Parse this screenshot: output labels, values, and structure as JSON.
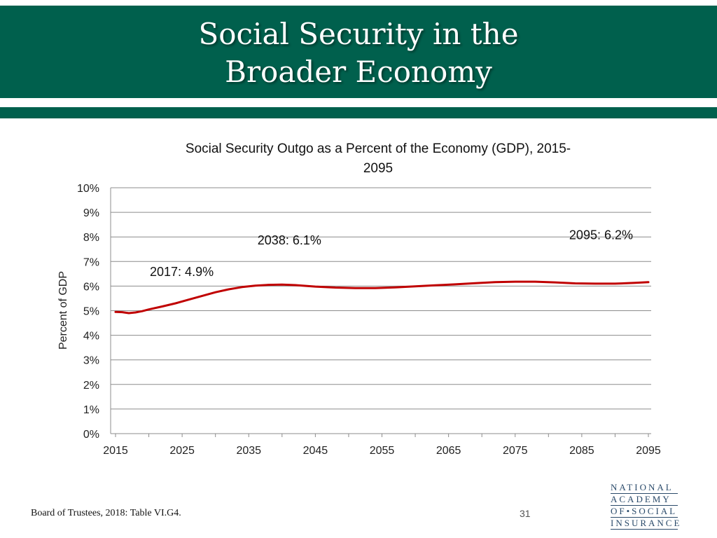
{
  "slide": {
    "title_line1": "Social Security in the",
    "title_line2": "Broader Economy",
    "source": "Board of Trustees, 2018: Table VI.G4.",
    "page_number": "31",
    "logo_lines": [
      "NATIONAL",
      "ACADEMY",
      "OF•SOCIAL",
      "INSURANCE"
    ]
  },
  "colors": {
    "header_green": "#00604d",
    "line_red": "#c00000",
    "grid": "#8c8c8c"
  },
  "chart_data": {
    "type": "line",
    "title_line1": "Social Security Outgo as a Percent of the Economy (GDP), 2015-",
    "title_line2": "2095",
    "xlabel": "",
    "ylabel": "Percent of GDP",
    "xlim": [
      2015,
      2095
    ],
    "ylim": [
      0,
      10
    ],
    "x_ticks": [
      2015,
      2025,
      2035,
      2045,
      2055,
      2065,
      2075,
      2085,
      2095
    ],
    "y_ticks": [
      "0%",
      "1%",
      "2%",
      "3%",
      "4%",
      "5%",
      "6%",
      "7%",
      "8%",
      "9%",
      "10%"
    ],
    "grid": true,
    "series": [
      {
        "name": "Social Security Outgo (% of GDP)",
        "x": [
          2015,
          2016,
          2017,
          2018,
          2019,
          2020,
          2022,
          2024,
          2026,
          2028,
          2030,
          2032,
          2034,
          2036,
          2038,
          2040,
          2042,
          2045,
          2048,
          2051,
          2054,
          2057,
          2060,
          2063,
          2066,
          2069,
          2072,
          2075,
          2078,
          2081,
          2084,
          2087,
          2090,
          2093,
          2095
        ],
        "values": [
          4.95,
          4.94,
          4.9,
          4.93,
          4.98,
          5.05,
          5.17,
          5.3,
          5.45,
          5.6,
          5.75,
          5.87,
          5.96,
          6.02,
          6.05,
          6.06,
          6.04,
          5.98,
          5.94,
          5.92,
          5.92,
          5.95,
          5.99,
          6.03,
          6.07,
          6.12,
          6.16,
          6.18,
          6.18,
          6.15,
          6.11,
          6.1,
          6.1,
          6.13,
          6.16
        ]
      }
    ],
    "annotations": [
      {
        "text": "2017: 4.9%",
        "x": 2017,
        "y": 4.9
      },
      {
        "text": "2038: 6.1%",
        "x": 2038,
        "y": 6.1
      },
      {
        "text": "2095: 6.2%",
        "x": 2095,
        "y": 6.2
      }
    ]
  }
}
